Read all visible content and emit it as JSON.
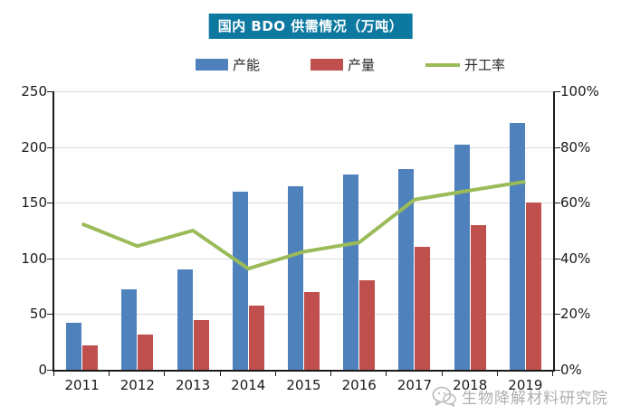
{
  "title": "国内 BDO 供需情况（万吨）",
  "watermark": {
    "text": "生物降解材料研究院",
    "icon": "wechat-logo-icon"
  },
  "colors": {
    "title_bg": "#0d79a1",
    "capacity_bar": "#4f81bd",
    "production_bar": "#c0504d",
    "utilization_line": "#9bbb59",
    "gridline": "#d9d9d9",
    "axis": "#1a1a1a",
    "watermark": "#aeaeae"
  },
  "chart_data": {
    "type": "bar",
    "subtype": "grouped bars with secondary-axis line",
    "categories": [
      "2011",
      "2012",
      "2013",
      "2014",
      "2015",
      "2016",
      "2017",
      "2018",
      "2019"
    ],
    "series": [
      {
        "name": "产能",
        "type": "bar",
        "axis": "left",
        "color": "#4f81bd",
        "values": [
          42,
          72,
          90,
          160,
          165,
          175,
          180,
          202,
          222
        ]
      },
      {
        "name": "产量",
        "type": "bar",
        "axis": "left",
        "color": "#c0504d",
        "values": [
          22,
          32,
          45,
          58,
          70,
          80,
          110,
          130,
          150
        ]
      },
      {
        "name": "开工率",
        "type": "line",
        "axis": "right",
        "color": "#9bbb59",
        "values": [
          52.4,
          44.4,
          50.0,
          36.3,
          42.4,
          45.7,
          61.1,
          64.4,
          67.6
        ]
      }
    ],
    "left_axis": {
      "ticks": [
        "0",
        "50",
        "100",
        "150",
        "200",
        "250"
      ],
      "range": [
        0,
        250
      ]
    },
    "right_axis": {
      "ticks": [
        "0%",
        "20%",
        "40%",
        "60%",
        "80%",
        "100%"
      ],
      "range_percent": [
        0,
        100
      ]
    },
    "grid": true,
    "legend_position": "top"
  }
}
